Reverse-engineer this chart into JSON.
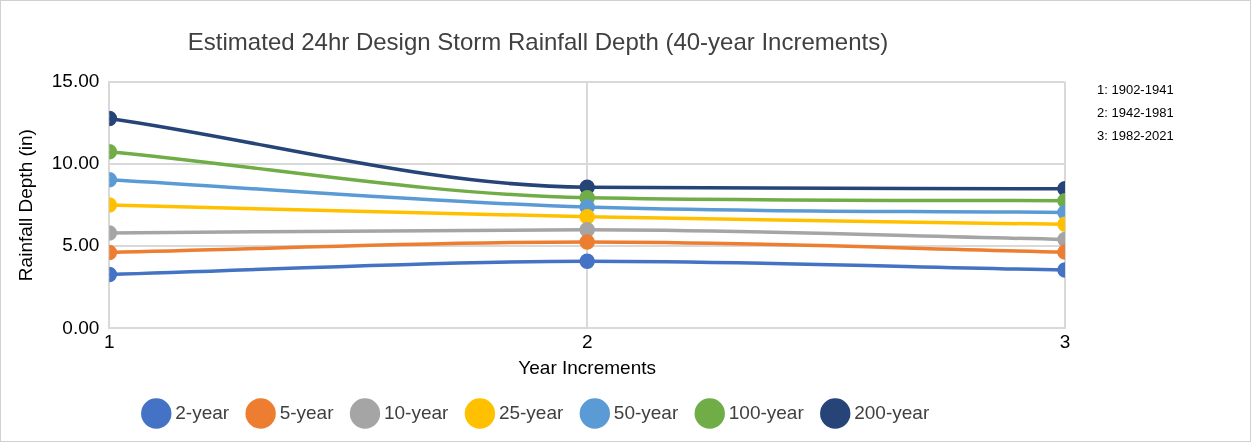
{
  "chart_data": {
    "type": "line",
    "title": "Estimated 24hr Design Storm Rainfall Depth (40-year Increments)",
    "xlabel": "Year Increments",
    "ylabel": "Rainfall Depth (in)",
    "x": [
      1,
      2,
      3
    ],
    "xlim": [
      1,
      3
    ],
    "xticks": [
      1,
      2,
      3
    ],
    "ylim": [
      0,
      15
    ],
    "yticks": [
      {
        "value": 0,
        "label": "0.00"
      },
      {
        "value": 5,
        "label": "5.00"
      },
      {
        "value": 10,
        "label": "10.00"
      },
      {
        "value": 15,
        "label": "15.00"
      }
    ],
    "grid": true,
    "legend": "bottom",
    "marker": "circle",
    "line_style": "solid",
    "annotations": [
      "1: 1902-1941",
      "2: 1942-1981",
      "3: 1982-2021"
    ],
    "series": [
      {
        "name": "2-year",
        "color": "#4472c4",
        "values": [
          3.28,
          4.09,
          3.55
        ]
      },
      {
        "name": "5-year",
        "color": "#ed7d31",
        "values": [
          4.62,
          5.26,
          4.64
        ]
      },
      {
        "name": "10-year",
        "color": "#a5a5a5",
        "values": [
          5.8,
          6.0,
          5.41
        ]
      },
      {
        "name": "25-year",
        "color": "#ffc000",
        "values": [
          7.51,
          6.79,
          6.33
        ]
      },
      {
        "name": "50-year",
        "color": "#5b9bd5",
        "values": [
          9.04,
          7.38,
          7.05
        ]
      },
      {
        "name": "100-year",
        "color": "#70ad47",
        "values": [
          10.75,
          7.95,
          7.77
        ]
      },
      {
        "name": "200-year",
        "color": "#264478",
        "values": [
          12.77,
          8.58,
          8.5
        ]
      }
    ]
  }
}
